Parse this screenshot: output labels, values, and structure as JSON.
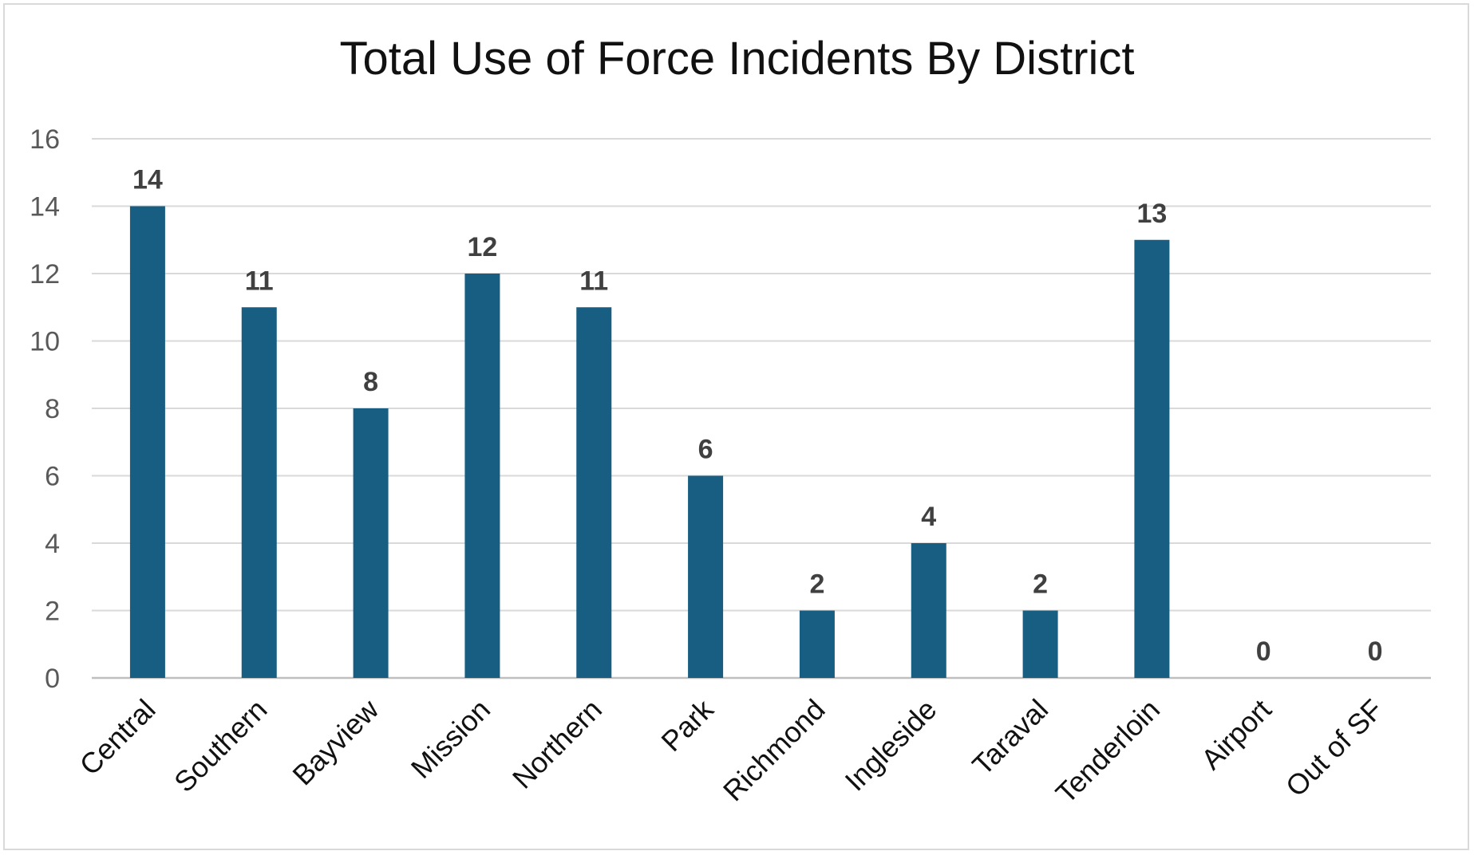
{
  "chart_data": {
    "type": "bar",
    "title": "Total Use of Force Incidents By District",
    "categories": [
      "Central",
      "Southern",
      "Bayview",
      "Mission",
      "Northern",
      "Park",
      "Richmond",
      "Ingleside",
      "Taraval",
      "Tenderloin",
      "Airport",
      "Out of SF"
    ],
    "values": [
      14,
      11,
      8,
      12,
      11,
      6,
      2,
      4,
      2,
      13,
      0,
      0
    ],
    "xlabel": "",
    "ylabel": "",
    "ylim": [
      0,
      16
    ],
    "yticks": [
      0,
      2,
      4,
      6,
      8,
      10,
      12,
      14,
      16
    ],
    "grid": true,
    "data_labels": true,
    "colors": {
      "bar": "#175E82",
      "grid": "#d9d9d9",
      "axis": "#bfbfbf"
    }
  }
}
